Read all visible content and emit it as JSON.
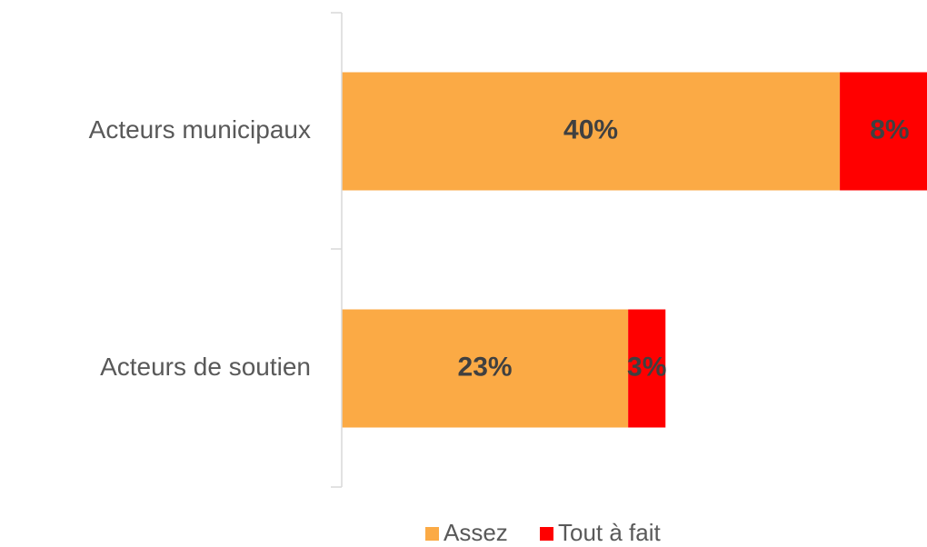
{
  "chart_data": {
    "type": "stacked_barh",
    "categories": [
      "Acteurs municipaux",
      "Acteurs de soutien"
    ],
    "series": [
      {
        "name": "Assez",
        "color": "#fbaa45",
        "values": [
          40,
          23
        ],
        "value_labels": [
          "40%",
          "23%"
        ]
      },
      {
        "name": "Tout à fait",
        "color": "#ff0000",
        "values": [
          8,
          3
        ],
        "value_labels": [
          "8%",
          "3%"
        ]
      }
    ],
    "xlim": [
      0,
      47
    ],
    "legend": "bottom"
  }
}
